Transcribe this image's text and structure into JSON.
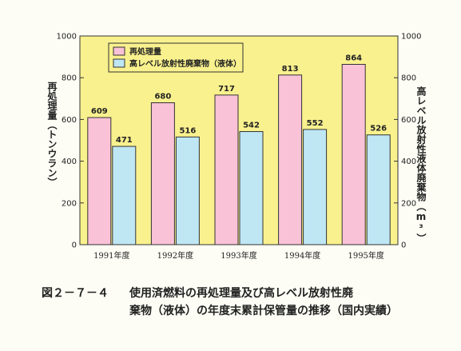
{
  "chart_data": {
    "type": "bar",
    "categories": [
      "1991年度",
      "1992年度",
      "1993年度",
      "1994年度",
      "1995年度"
    ],
    "series": [
      {
        "name": "再処理量",
        "values": [
          609,
          680,
          717,
          813,
          864
        ],
        "color": "#f9c2d6",
        "axis": "left"
      },
      {
        "name": "高レベル放射性廃棄物（液体）",
        "values": [
          471,
          516,
          542,
          552,
          526
        ],
        "color": "#bfe6f3",
        "axis": "right"
      }
    ],
    "ylim": [
      0,
      1000
    ],
    "y_ticks": [
      0,
      200,
      400,
      600,
      800,
      1000
    ],
    "ylabel_left": "再処理量（トンウラン）",
    "ylabel_right": "高レベル放射性液体廃棄物（m³）",
    "plot_background": "#f9f18e",
    "grid": false,
    "legend_position": "top-left"
  },
  "caption": {
    "number": "図２－７－４",
    "line1": "使用済燃料の再処理量及び高レベル放射性廃",
    "line2": "棄物（液体）の年度末累計保管量の推移（国内実績）"
  }
}
